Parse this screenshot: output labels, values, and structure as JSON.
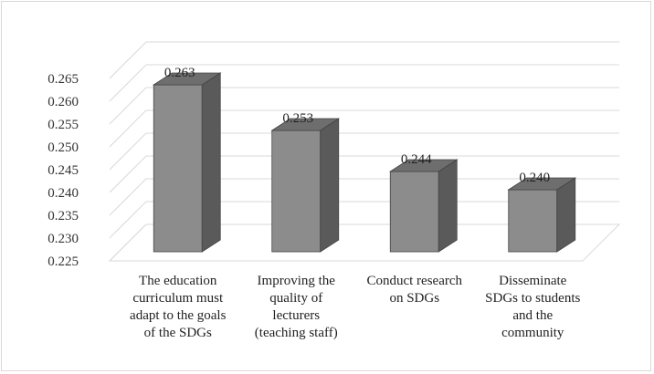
{
  "chart_data": {
    "type": "bar",
    "title": "",
    "xlabel": "",
    "ylabel": "",
    "ylim": [
      0.225,
      0.265
    ],
    "yticks": [
      "0.225",
      "0.230",
      "0.235",
      "0.240",
      "0.245",
      "0.250",
      "0.255",
      "0.260",
      "0.265"
    ],
    "grid": true,
    "legend": "none",
    "style": "3d-column",
    "colors": {
      "bar_front": "#8c8c8c",
      "bar_side": "#5a5a5a",
      "bar_top": "#6e6e6e",
      "grid": "#d9d9d9"
    },
    "categories": [
      [
        "The education",
        "curriculum must",
        "adapt to the goals",
        "of the SDGs"
      ],
      [
        "Improving the",
        "quality of",
        "lecturers",
        "(teaching staff)"
      ],
      [
        "Conduct research",
        "on SDGs"
      ],
      [
        "Disseminate",
        "SDGs to students",
        "and the",
        "community"
      ]
    ],
    "values": [
      0.263,
      0.253,
      0.244,
      0.24
    ],
    "data_labels": [
      "0.263",
      "0.253",
      "0.244",
      "0.240"
    ]
  }
}
